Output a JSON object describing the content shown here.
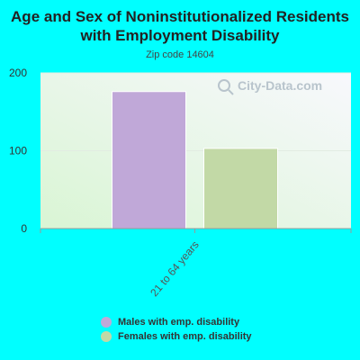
{
  "title": "Age and Sex of Noninstitutionalized Residents with Employment Disability",
  "subtitle": "Zip code 14604",
  "watermark": "City-Data.com",
  "chart_data": {
    "type": "bar",
    "title": "Age and Sex of Noninstitutionalized Residents with Employment Disability",
    "subtitle": "Zip code 14604",
    "categories": [
      "21 to 64 years"
    ],
    "series": [
      {
        "name": "Males with emp. disability",
        "values": [
          176
        ],
        "color": "#C0A8D8"
      },
      {
        "name": "Females with emp. disability",
        "values": [
          103
        ],
        "color": "#C2D9A6"
      }
    ],
    "xlabel": "",
    "ylabel": "",
    "ylim": [
      0,
      200
    ],
    "yticks": [
      0,
      100,
      200
    ],
    "grid": true,
    "legend": "bottom"
  }
}
